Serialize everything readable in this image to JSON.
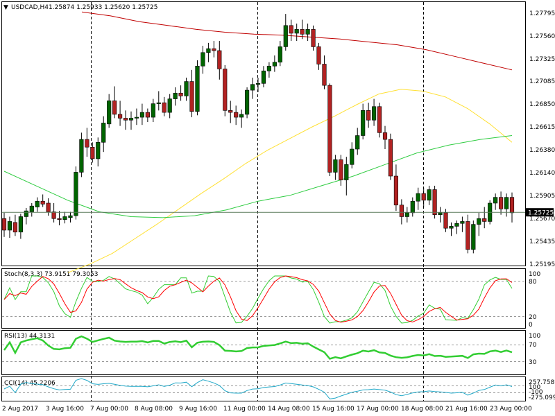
{
  "main": {
    "symbol_label": "USDCAD,H4",
    "ohlc_label": "1.25874 1.25933 1.25620 1.25725",
    "price_ticks": [
      "1.27795",
      "1.27560",
      "1.27325",
      "1.27085",
      "1.26850",
      "1.26615",
      "1.26380",
      "1.26140",
      "1.25905",
      "1.25670",
      "1.25435",
      "1.25195"
    ],
    "price_range": [
      1.25195,
      1.27795
    ],
    "current_price": "1.25725",
    "current_price_value": 1.25725
  },
  "stoch": {
    "label": "Stoch(8,3,3) 73.9151 79.3053",
    "ticks": [
      "100",
      "80",
      "20",
      "0"
    ],
    "levels": [
      80,
      20
    ]
  },
  "rsi": {
    "label": "RSI(13) 44.3131",
    "ticks": [
      "100",
      "70",
      "30"
    ],
    "levels": [
      70,
      30
    ]
  },
  "cci": {
    "label": "CCI(14) 45.2206",
    "ticks": [
      "257.7589",
      "100",
      "-100",
      "-275.0992"
    ]
  },
  "time_axis": [
    "2 Aug 2017",
    "3 Aug 16:00",
    "7 Aug 00:00",
    "8 Aug 08:00",
    "9 Aug 16:00",
    "11 Aug 00:00",
    "14 Aug 08:00",
    "15 Aug 16:00",
    "17 Aug 00:00",
    "18 Aug 08:00",
    "21 Aug 16:00",
    "23 Aug 00:00"
  ],
  "colors": {
    "bull": "#006400",
    "bear": "#b22222",
    "ma_red": "#c00000",
    "ma_yellow": "#ffe033",
    "ma_green": "#2ecc40",
    "stoch_main": "#32cd32",
    "stoch_signal": "#ff0000",
    "rsi": "#32cd32",
    "cci": "#1fa8c8",
    "grid": "#000000"
  },
  "chart_data": {
    "type": "candlestick",
    "title": "USDCAD,H4",
    "ylim": [
      1.25195,
      1.27795
    ],
    "candles": [
      [
        1.2566,
        1.2572,
        1.2547,
        1.2554
      ],
      [
        1.2554,
        1.2568,
        1.2546,
        1.2563
      ],
      [
        1.2562,
        1.257,
        1.2548,
        1.2552
      ],
      [
        1.2552,
        1.2571,
        1.2545,
        1.2568
      ],
      [
        1.2568,
        1.2577,
        1.256,
        1.2574
      ],
      [
        1.2573,
        1.2582,
        1.2568,
        1.2579
      ],
      [
        1.2578,
        1.2588,
        1.2573,
        1.2584
      ],
      [
        1.2584,
        1.2591,
        1.2578,
        1.2581
      ],
      [
        1.2582,
        1.2587,
        1.2569,
        1.2573
      ],
      [
        1.2573,
        1.2582,
        1.2562,
        1.2566
      ],
      [
        1.2566,
        1.2574,
        1.2559,
        1.2565
      ],
      [
        1.2565,
        1.2573,
        1.2561,
        1.2568
      ],
      [
        1.2567,
        1.2573,
        1.2562,
        1.2569
      ],
      [
        1.2569,
        1.262,
        1.2565,
        1.2614
      ],
      [
        1.2614,
        1.2655,
        1.2609,
        1.2648
      ],
      [
        1.2648,
        1.266,
        1.263,
        1.264
      ],
      [
        1.264,
        1.2645,
        1.2624,
        1.2628
      ],
      [
        1.2628,
        1.265,
        1.262,
        1.2645
      ],
      [
        1.2645,
        1.2672,
        1.2635,
        1.2665
      ],
      [
        1.2664,
        1.2695,
        1.266,
        1.2688
      ],
      [
        1.2688,
        1.2703,
        1.267,
        1.2674
      ],
      [
        1.2674,
        1.2688,
        1.2662,
        1.267
      ],
      [
        1.267,
        1.2678,
        1.2658,
        1.2668
      ],
      [
        1.2668,
        1.2677,
        1.2658,
        1.267
      ],
      [
        1.267,
        1.268,
        1.2663,
        1.2671
      ],
      [
        1.2671,
        1.2685,
        1.2663,
        1.2676
      ],
      [
        1.2676,
        1.268,
        1.2666,
        1.2671
      ],
      [
        1.2671,
        1.269,
        1.2666,
        1.2685
      ],
      [
        1.2685,
        1.2698,
        1.2678,
        1.2686
      ],
      [
        1.2686,
        1.2692,
        1.2672,
        1.2676
      ],
      [
        1.2676,
        1.2695,
        1.267,
        1.269
      ],
      [
        1.269,
        1.2702,
        1.2683,
        1.2696
      ],
      [
        1.2696,
        1.2704,
        1.2688,
        1.2693
      ],
      [
        1.2693,
        1.2712,
        1.2688,
        1.2708
      ],
      [
        1.2708,
        1.272,
        1.2671,
        1.2677
      ],
      [
        1.2677,
        1.273,
        1.2673,
        1.2724
      ],
      [
        1.2724,
        1.2745,
        1.2716,
        1.2738
      ],
      [
        1.2738,
        1.2748,
        1.2728,
        1.2742
      ],
      [
        1.2742,
        1.275,
        1.2733,
        1.274
      ],
      [
        1.274,
        1.275,
        1.271,
        1.2721
      ],
      [
        1.2721,
        1.2725,
        1.2672,
        1.2678
      ],
      [
        1.2678,
        1.2688,
        1.2665,
        1.2676
      ],
      [
        1.2676,
        1.2683,
        1.2663,
        1.2671
      ],
      [
        1.2671,
        1.2679,
        1.266,
        1.2674
      ],
      [
        1.2674,
        1.2702,
        1.267,
        1.2699
      ],
      [
        1.2699,
        1.2712,
        1.269,
        1.2705
      ],
      [
        1.2705,
        1.2712,
        1.2697,
        1.2706
      ],
      [
        1.2706,
        1.2724,
        1.2702,
        1.2719
      ],
      [
        1.2719,
        1.2728,
        1.2712,
        1.2724
      ],
      [
        1.2724,
        1.2735,
        1.2718,
        1.2728
      ],
      [
        1.2728,
        1.275,
        1.2724,
        1.2744
      ],
      [
        1.2744,
        1.2778,
        1.274,
        1.2766
      ],
      [
        1.2766,
        1.2772,
        1.275,
        1.2758
      ],
      [
        1.2758,
        1.2768,
        1.275,
        1.2762
      ],
      [
        1.2762,
        1.2772,
        1.2752,
        1.2757
      ],
      [
        1.2757,
        1.2768,
        1.275,
        1.2762
      ],
      [
        1.2762,
        1.2766,
        1.274,
        1.2744
      ],
      [
        1.2744,
        1.2748,
        1.272,
        1.2726
      ],
      [
        1.2726,
        1.2735,
        1.27,
        1.2704
      ],
      [
        1.2704,
        1.2706,
        1.261,
        1.2614
      ],
      [
        1.2614,
        1.2632,
        1.2606,
        1.2627
      ],
      [
        1.2627,
        1.2632,
        1.26,
        1.2606
      ],
      [
        1.2606,
        1.263,
        1.259,
        1.2622
      ],
      [
        1.2622,
        1.2645,
        1.2618,
        1.2638
      ],
      [
        1.2638,
        1.266,
        1.2632,
        1.2652
      ],
      [
        1.2652,
        1.2685,
        1.2648,
        1.2678
      ],
      [
        1.2678,
        1.2686,
        1.266,
        1.2668
      ],
      [
        1.2668,
        1.269,
        1.2662,
        1.2682
      ],
      [
        1.2682,
        1.2686,
        1.265,
        1.2655
      ],
      [
        1.2655,
        1.2662,
        1.2638,
        1.2648
      ],
      [
        1.2648,
        1.2654,
        1.2606,
        1.261
      ],
      [
        1.261,
        1.2622,
        1.2574,
        1.258
      ],
      [
        1.258,
        1.2586,
        1.256,
        1.2568
      ],
      [
        1.2568,
        1.2578,
        1.2562,
        1.2572
      ],
      [
        1.2572,
        1.2588,
        1.2568,
        1.2584
      ],
      [
        1.2584,
        1.2598,
        1.2575,
        1.2592
      ],
      [
        1.2592,
        1.2598,
        1.2578,
        1.2585
      ],
      [
        1.2585,
        1.26,
        1.258,
        1.2596
      ],
      [
        1.2596,
        1.26,
        1.2566,
        1.257
      ],
      [
        1.257,
        1.2578,
        1.2562,
        1.2572
      ],
      [
        1.2572,
        1.2576,
        1.2552,
        1.2556
      ],
      [
        1.2556,
        1.2562,
        1.2548,
        1.2558
      ],
      [
        1.2558,
        1.2564,
        1.255,
        1.2561
      ],
      [
        1.2561,
        1.2568,
        1.2552,
        1.2563
      ],
      [
        1.2563,
        1.257,
        1.253,
        1.2534
      ],
      [
        1.2534,
        1.2564,
        1.253,
        1.256
      ],
      [
        1.256,
        1.2572,
        1.2548,
        1.2566
      ],
      [
        1.2566,
        1.2578,
        1.2556,
        1.2563
      ],
      [
        1.2563,
        1.2585,
        1.256,
        1.2582
      ],
      [
        1.2582,
        1.2592,
        1.2575,
        1.2588
      ],
      [
        1.2588,
        1.2594,
        1.257,
        1.2576
      ],
      [
        1.2576,
        1.2592,
        1.2568,
        1.2588
      ],
      [
        1.2588,
        1.2593,
        1.2562,
        1.2572
      ]
    ],
    "series": [
      {
        "values": [
          1.278,
          1.2776,
          1.277,
          1.2766,
          1.2762,
          1.2759,
          1.2757,
          1.2756,
          1.2754,
          1.2752,
          1.2749,
          1.2746,
          1.2741,
          1.2734,
          1.2727,
          1.272
        ]
      },
      {
        "values": [
          1.251,
          1.2519,
          1.253,
          1.2545,
          1.256,
          1.2576,
          1.2592,
          1.2607,
          1.2623,
          1.2637,
          1.2649,
          1.2661,
          1.2672,
          1.2684,
          1.2695,
          1.27,
          1.2698,
          1.2692,
          1.268,
          1.2664,
          1.2645
        ]
      },
      {
        "values": [
          1.2615,
          1.26,
          1.2585,
          1.2573,
          1.2568,
          1.2567,
          1.2569,
          1.2575,
          1.2584,
          1.259,
          1.26,
          1.261,
          1.2622,
          1.2634,
          1.2642,
          1.2648,
          1.2652
        ]
      }
    ]
  }
}
